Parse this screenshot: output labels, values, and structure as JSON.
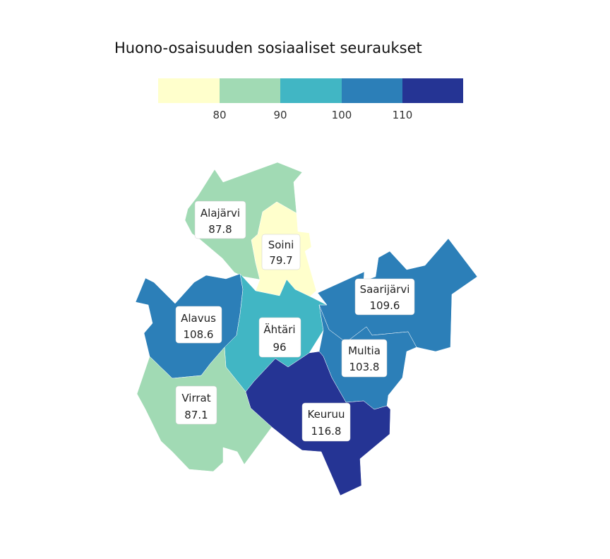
{
  "title": "Huono-osaisuuden sosiaaliset seuraukset",
  "legend": {
    "bins": [
      {
        "color": "#ffffcc",
        "label": ""
      },
      {
        "color": "#a1dab4",
        "label": "80"
      },
      {
        "color": "#41b6c4",
        "label": "90"
      },
      {
        "color": "#2c7fb8",
        "label": "100"
      },
      {
        "color": "#253494",
        "label": "110"
      }
    ]
  },
  "regions": [
    {
      "id": "alajarvi",
      "name": "Alajärvi",
      "value": "87.8",
      "color": "#a1dab4"
    },
    {
      "id": "soini",
      "name": "Soini",
      "value": "79.7",
      "color": "#ffffcc"
    },
    {
      "id": "saarijarvi",
      "name": "Saarijärvi",
      "value": "109.6",
      "color": "#2c7fb8"
    },
    {
      "id": "alavus",
      "name": "Alavus",
      "value": "108.6",
      "color": "#2c7fb8"
    },
    {
      "id": "ahtari",
      "name": "Ähtäri",
      "value": "96",
      "color": "#41b6c4"
    },
    {
      "id": "multia",
      "name": "Multia",
      "value": "103.8",
      "color": "#2c7fb8"
    },
    {
      "id": "virrat",
      "name": "Virrat",
      "value": "87.1",
      "color": "#a1dab4"
    },
    {
      "id": "keuruu",
      "name": "Keuruu",
      "value": "116.8",
      "color": "#253494"
    }
  ]
}
